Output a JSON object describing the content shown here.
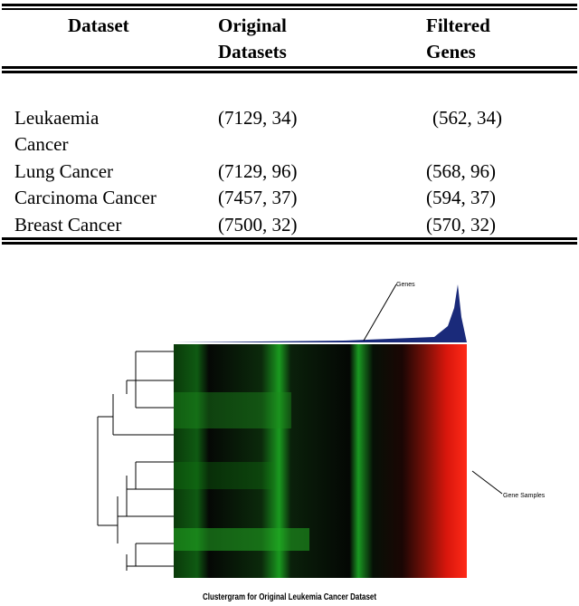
{
  "table": {
    "header": [
      "Dataset",
      "Original Datasets",
      "Filtered Genes"
    ],
    "rows": [
      [
        "Leukaemia Cancer",
        "(7129, 34)",
        "(562, 34)"
      ],
      [
        "Lung Cancer",
        "(7129, 96)",
        "(568, 96)"
      ],
      [
        "Carcinoma Cancer",
        "(7457, 37)",
        "(594, 37)"
      ],
      [
        "Breast Cancer",
        "(7500, 32)",
        "(570, 32)"
      ]
    ]
  },
  "figure": {
    "genes_label": "Genes",
    "samples_label": "Gene Samples",
    "caption": "Clustergram for Original Leukemia Cancer Dataset"
  }
}
